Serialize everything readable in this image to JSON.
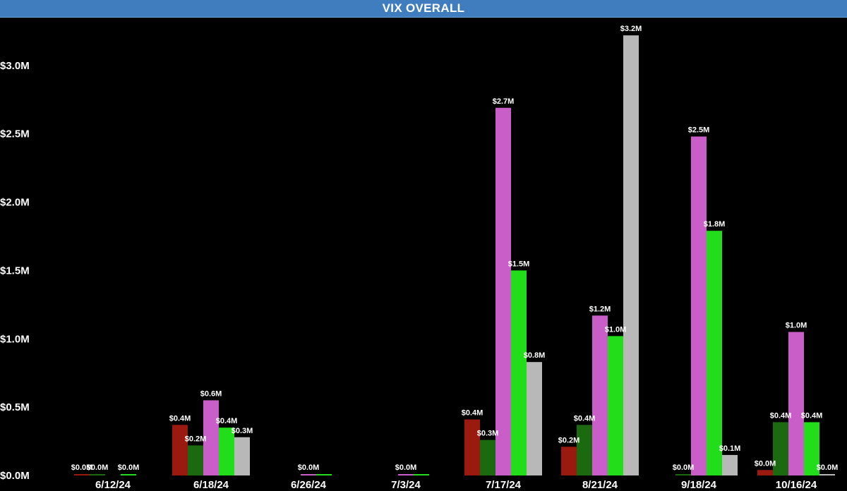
{
  "chart_data": {
    "type": "bar",
    "title": "VIX OVERALL",
    "xlabel": "",
    "ylabel": "",
    "ylim": [
      0,
      3.2
    ],
    "yticks": [
      "$0.0M",
      "$0.5M",
      "$1.0M",
      "$1.5M",
      "$2.0M",
      "$2.5M",
      "$3.0M"
    ],
    "grid": false,
    "legend": "none",
    "series_colors": [
      "#9b1a10",
      "#1c6a10",
      "#c95ec8",
      "#22dd1a",
      "#b8b8b8"
    ],
    "groups": [
      {
        "category": "6/12/24",
        "bars": [
          {
            "series": 0,
            "value": 0.0,
            "label": "$0.0M"
          },
          {
            "series": 1,
            "value": 0.0,
            "label": "$0.0M"
          },
          {
            "series": 3,
            "value": 0.0,
            "label": "$0.0M"
          }
        ]
      },
      {
        "category": "6/18/24",
        "bars": [
          {
            "series": 0,
            "value": 0.37,
            "label": "$0.4M"
          },
          {
            "series": 1,
            "value": 0.22,
            "label": "$0.2M"
          },
          {
            "series": 2,
            "value": 0.55,
            "label": "$0.6M"
          },
          {
            "series": 3,
            "value": 0.35,
            "label": "$0.4M"
          },
          {
            "series": 4,
            "value": 0.28,
            "label": "$0.3M"
          }
        ]
      },
      {
        "category": "6/26/24",
        "bars": [
          {
            "series": 2,
            "value": 0.0,
            "label": "$0.0M"
          },
          {
            "series": 3,
            "value": 0.0,
            "label": ""
          }
        ]
      },
      {
        "category": "7/3/24",
        "bars": [
          {
            "series": 2,
            "value": 0.0,
            "label": "$0.0M"
          },
          {
            "series": 3,
            "value": 0.0,
            "label": ""
          }
        ]
      },
      {
        "category": "7/17/24",
        "bars": [
          {
            "series": 0,
            "value": 0.41,
            "label": "$0.4M"
          },
          {
            "series": 1,
            "value": 0.26,
            "label": "$0.3M"
          },
          {
            "series": 2,
            "value": 2.69,
            "label": "$2.7M"
          },
          {
            "series": 3,
            "value": 1.5,
            "label": "$1.5M"
          },
          {
            "series": 4,
            "value": 0.83,
            "label": "$0.8M"
          }
        ]
      },
      {
        "category": "8/21/24",
        "bars": [
          {
            "series": 0,
            "value": 0.21,
            "label": "$0.2M"
          },
          {
            "series": 1,
            "value": 0.37,
            "label": "$0.4M"
          },
          {
            "series": 2,
            "value": 1.17,
            "label": "$1.2M"
          },
          {
            "series": 3,
            "value": 1.02,
            "label": "$1.0M"
          },
          {
            "series": 4,
            "value": 3.22,
            "label": "$3.2M"
          }
        ]
      },
      {
        "category": "9/18/24",
        "bars": [
          {
            "series": 1,
            "value": 0.0,
            "label": "$0.0M"
          },
          {
            "series": 2,
            "value": 2.48,
            "label": "$2.5M"
          },
          {
            "series": 3,
            "value": 1.79,
            "label": "$1.8M"
          },
          {
            "series": 4,
            "value": 0.15,
            "label": "$0.1M"
          }
        ]
      },
      {
        "category": "10/16/24",
        "bars": [
          {
            "series": 0,
            "value": 0.04,
            "label": "$0.0M"
          },
          {
            "series": 1,
            "value": 0.39,
            "label": "$0.4M"
          },
          {
            "series": 2,
            "value": 1.05,
            "label": "$1.0M"
          },
          {
            "series": 3,
            "value": 0.39,
            "label": "$0.4M"
          },
          {
            "series": 4,
            "value": 0.0,
            "label": "$0.0M"
          }
        ]
      }
    ]
  }
}
